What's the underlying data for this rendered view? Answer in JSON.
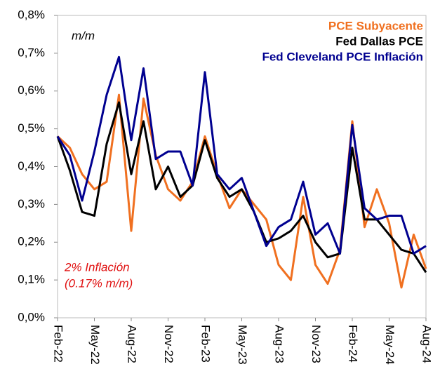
{
  "chart_data": {
    "type": "line",
    "subtitle": "m/m",
    "annotations": [
      "2% Inflación",
      "(0.17% m/m)"
    ],
    "categories": [
      "Feb-22",
      null,
      null,
      "May-22",
      null,
      null,
      "Aug-22",
      null,
      null,
      "Nov-22",
      null,
      null,
      "Feb-23",
      null,
      null,
      "May-23",
      null,
      null,
      "Aug-23",
      null,
      null,
      "Nov-23",
      null,
      null,
      "Feb-24",
      null,
      null,
      "May-24",
      null,
      null,
      "Aug-24"
    ],
    "series": [
      {
        "name": "PCE Subyacente",
        "color": "#f07020",
        "values": [
          0.48,
          0.45,
          0.38,
          0.34,
          0.36,
          0.59,
          0.23,
          0.58,
          0.43,
          0.34,
          0.31,
          0.36,
          0.48,
          0.38,
          0.29,
          0.34,
          0.3,
          0.26,
          0.14,
          0.1,
          0.32,
          0.14,
          0.09,
          0.18,
          0.52,
          0.24,
          0.34,
          0.25,
          0.08,
          0.22,
          0.13
        ]
      },
      {
        "name": "Fed Dallas PCE",
        "color": "#000000",
        "values": [
          0.48,
          0.39,
          0.28,
          0.27,
          0.46,
          0.57,
          0.38,
          0.52,
          0.34,
          0.4,
          0.32,
          0.35,
          0.47,
          0.37,
          0.32,
          0.34,
          0.28,
          0.2,
          0.21,
          0.23,
          0.27,
          0.2,
          0.16,
          0.17,
          0.45,
          0.26,
          0.26,
          0.22,
          0.18,
          0.17,
          0.12
        ]
      },
      {
        "name": "Fed Cleveland PCE Inflación",
        "color": "#000090",
        "values": [
          0.48,
          0.43,
          0.31,
          0.44,
          0.59,
          0.69,
          0.47,
          0.66,
          0.42,
          0.44,
          0.44,
          0.35,
          0.65,
          0.38,
          0.34,
          0.37,
          0.28,
          0.19,
          0.24,
          0.26,
          0.36,
          0.22,
          0.25,
          0.17,
          0.51,
          0.29,
          0.26,
          0.27,
          0.27,
          0.17,
          0.19
        ]
      }
    ],
    "ylim": [
      0,
      0.8
    ],
    "yticks": [
      {
        "value": 0,
        "label": "0,0%"
      },
      {
        "value": 0.1,
        "label": "0,1%"
      },
      {
        "value": 0.2,
        "label": "0,2%"
      },
      {
        "value": 0.3,
        "label": "0,3%"
      },
      {
        "value": 0.4,
        "label": "0,4%"
      },
      {
        "value": 0.5,
        "label": "0,5%"
      },
      {
        "value": 0.6,
        "label": "0,6%"
      },
      {
        "value": 0.7,
        "label": "0,7%"
      },
      {
        "value": 0.8,
        "label": "0,8%"
      }
    ],
    "legend": "top-right"
  }
}
